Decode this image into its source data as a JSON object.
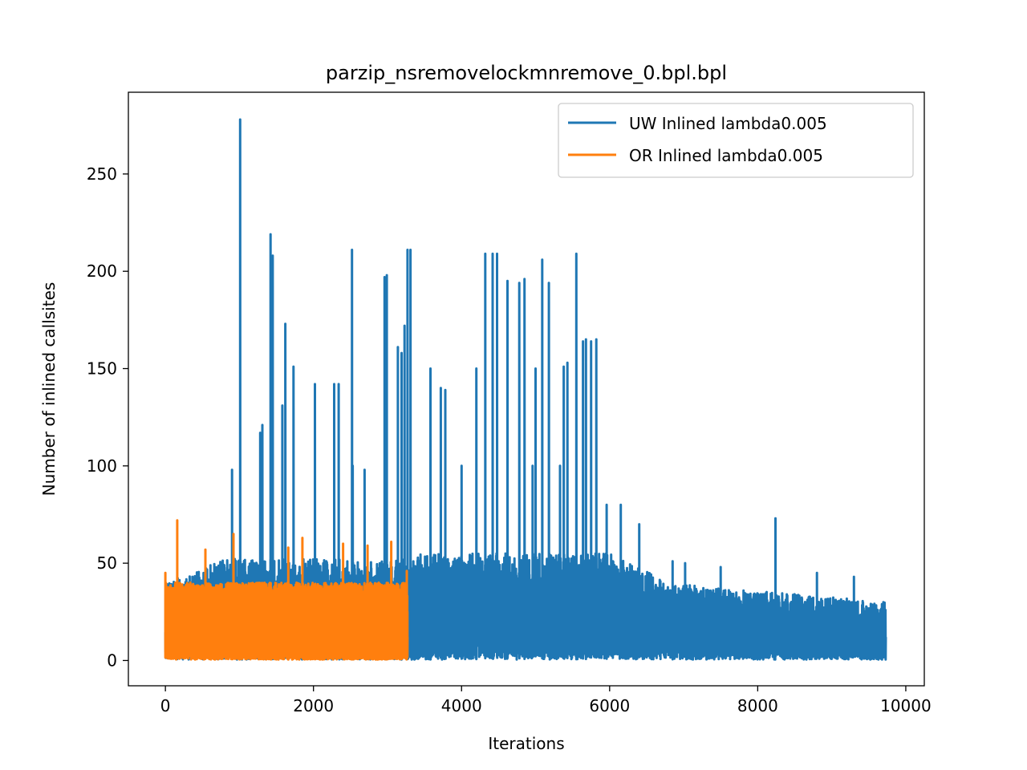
{
  "chart_data": {
    "type": "line",
    "title": "parzip_nsremovelockmnremove_0.bpl.bpl",
    "xlabel": "Iterations",
    "ylabel": "Number of inlined callsites",
    "xlim": [
      -500,
      10250
    ],
    "ylim": [
      -13,
      292
    ],
    "xticks": [
      0,
      2000,
      4000,
      6000,
      8000,
      10000
    ],
    "yticks": [
      0,
      50,
      100,
      150,
      200,
      250
    ],
    "grid": false,
    "legend_position": "upper-right",
    "series": [
      {
        "name": "UW Inlined lambda0.005",
        "color": "#1f77b4",
        "x_range": [
          0,
          9730
        ],
        "peaks": [
          {
            "x": 1010,
            "y": 278
          },
          {
            "x": 1420,
            "y": 219
          },
          {
            "x": 1450,
            "y": 208
          },
          {
            "x": 2520,
            "y": 211
          },
          {
            "x": 2960,
            "y": 197
          },
          {
            "x": 2990,
            "y": 198
          },
          {
            "x": 3270,
            "y": 211
          },
          {
            "x": 3310,
            "y": 211
          },
          {
            "x": 3230,
            "y": 172
          },
          {
            "x": 3140,
            "y": 161
          },
          {
            "x": 3190,
            "y": 158
          },
          {
            "x": 1620,
            "y": 173
          },
          {
            "x": 1580,
            "y": 131
          },
          {
            "x": 1730,
            "y": 151
          },
          {
            "x": 1280,
            "y": 117
          },
          {
            "x": 1310,
            "y": 121
          },
          {
            "x": 2020,
            "y": 142
          },
          {
            "x": 2280,
            "y": 142
          },
          {
            "x": 2340,
            "y": 142
          },
          {
            "x": 4320,
            "y": 209
          },
          {
            "x": 4420,
            "y": 209
          },
          {
            "x": 4480,
            "y": 209
          },
          {
            "x": 4620,
            "y": 195
          },
          {
            "x": 4780,
            "y": 194
          },
          {
            "x": 4850,
            "y": 196
          },
          {
            "x": 5090,
            "y": 206
          },
          {
            "x": 5180,
            "y": 194
          },
          {
            "x": 5550,
            "y": 209
          },
          {
            "x": 3720,
            "y": 140
          },
          {
            "x": 3780,
            "y": 139
          },
          {
            "x": 3580,
            "y": 150
          },
          {
            "x": 4200,
            "y": 150
          },
          {
            "x": 5380,
            "y": 151
          },
          {
            "x": 5430,
            "y": 153
          },
          {
            "x": 5640,
            "y": 164
          },
          {
            "x": 5680,
            "y": 165
          },
          {
            "x": 5750,
            "y": 164
          },
          {
            "x": 5820,
            "y": 165
          },
          {
            "x": 5000,
            "y": 150
          },
          {
            "x": 900,
            "y": 98
          },
          {
            "x": 2690,
            "y": 98
          },
          {
            "x": 2530,
            "y": 100
          },
          {
            "x": 4000,
            "y": 100
          },
          {
            "x": 4960,
            "y": 100
          },
          {
            "x": 5330,
            "y": 100
          },
          {
            "x": 5960,
            "y": 80
          },
          {
            "x": 6150,
            "y": 80
          },
          {
            "x": 6400,
            "y": 70
          },
          {
            "x": 8240,
            "y": 73
          },
          {
            "x": 7020,
            "y": 50
          },
          {
            "x": 6850,
            "y": 51
          },
          {
            "x": 7500,
            "y": 48
          },
          {
            "x": 8800,
            "y": 45
          },
          {
            "x": 9300,
            "y": 43
          },
          {
            "x": 9700,
            "y": 16
          }
        ]
      },
      {
        "name": "OR Inlined lambda0.005",
        "color": "#ff7f0e",
        "x_range": [
          0,
          3270
        ],
        "peaks": [
          {
            "x": 0,
            "y": 45
          },
          {
            "x": 160,
            "y": 72
          },
          {
            "x": 540,
            "y": 57
          },
          {
            "x": 920,
            "y": 65
          },
          {
            "x": 1660,
            "y": 58
          },
          {
            "x": 1850,
            "y": 63
          },
          {
            "x": 2400,
            "y": 60
          },
          {
            "x": 2730,
            "y": 59
          },
          {
            "x": 3050,
            "y": 61
          },
          {
            "x": 3260,
            "y": 46
          }
        ]
      }
    ]
  }
}
